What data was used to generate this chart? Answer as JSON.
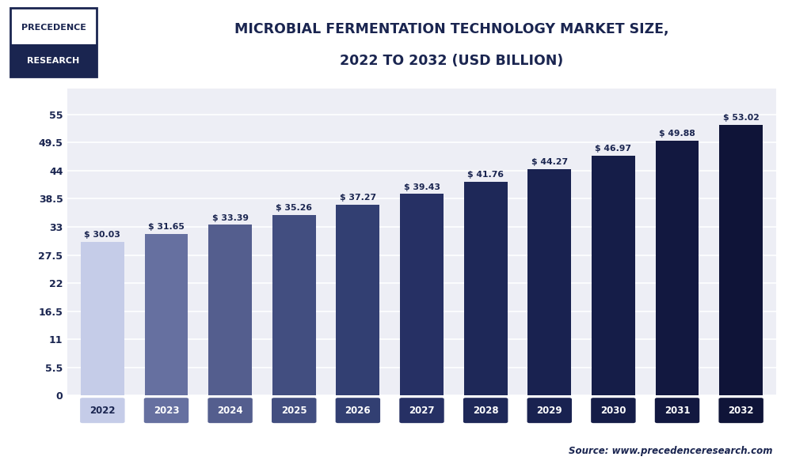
{
  "title_line1": "MICROBIAL FERMENTATION TECHNOLOGY MARKET SIZE,",
  "title_line2": "2022 TO 2032 (USD BILLION)",
  "categories": [
    "2022",
    "2023",
    "2024",
    "2025",
    "2026",
    "2027",
    "2028",
    "2029",
    "2030",
    "2031",
    "2032"
  ],
  "values": [
    30.03,
    31.65,
    33.39,
    35.26,
    37.27,
    39.43,
    41.76,
    44.27,
    46.97,
    49.88,
    53.02
  ],
  "bar_colors": [
    "#c5cce8",
    "#6670a0",
    "#545e8e",
    "#424e80",
    "#323f72",
    "#263064",
    "#1e2858",
    "#192250",
    "#151d48",
    "#121840",
    "#0f1438"
  ],
  "yticks": [
    0,
    5.5,
    11,
    16.5,
    22,
    27.5,
    33,
    38.5,
    44,
    49.5,
    55
  ],
  "ylim": [
    0,
    60
  ],
  "background_color": "#ffffff",
  "plot_bg_color": "#edeef5",
  "title_color": "#1a2550",
  "header_line_color": "#1a2550",
  "source_text": "Source: www.precedenceresearch.com",
  "logo_text_line1": "PRECEDENCE",
  "logo_text_line2": "RESEARCH",
  "bar_annotation_prefix": "$ "
}
